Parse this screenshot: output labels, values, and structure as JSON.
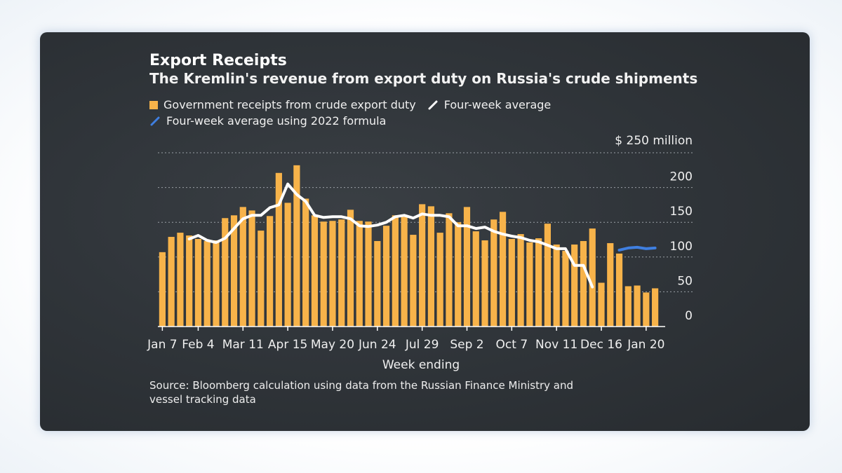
{
  "chart_data": {
    "type": "bar",
    "title": "Export Receipts",
    "subtitle": "The Kremlin's revenue from export duty on Russia's crude shipments",
    "legend": {
      "bars": "Government receipts from crude export duty",
      "line": "Four-week average",
      "line2022": "Four-week average using 2022 formula"
    },
    "unit_label": "$ 250 million",
    "xlabel": "Week ending",
    "ylim": [
      0,
      250
    ],
    "y_ticks": [
      "0",
      "50",
      "100",
      "150",
      "200"
    ],
    "x_ticks": [
      {
        "label": "Jan 7",
        "index": 0
      },
      {
        "label": "Feb 4",
        "index": 4
      },
      {
        "label": "Mar 11",
        "index": 9
      },
      {
        "label": "Apr 15",
        "index": 14
      },
      {
        "label": "May 20",
        "index": 19
      },
      {
        "label": "Jun 24",
        "index": 24
      },
      {
        "label": "Jul 29",
        "index": 29
      },
      {
        "label": "Sep 2",
        "index": 34
      },
      {
        "label": "Oct 7",
        "index": 39
      },
      {
        "label": "Nov 11",
        "index": 44
      },
      {
        "label": "Dec 16",
        "index": 49
      },
      {
        "label": "Jan 20",
        "index": 54
      }
    ],
    "series": [
      {
        "name": "Government receipts from crude export duty",
        "color": "#f7b34a",
        "values": [
          107,
          129,
          135,
          131,
          126,
          123,
          124,
          156,
          160,
          172,
          167,
          138,
          159,
          221,
          178,
          232,
          184,
          160,
          151,
          152,
          154,
          168,
          152,
          151,
          123,
          145,
          160,
          158,
          132,
          176,
          173,
          135,
          163,
          150,
          172,
          137,
          124,
          154,
          165,
          126,
          133,
          121,
          127,
          148,
          118,
          109,
          118,
          123,
          141,
          63,
          120,
          105,
          58,
          59,
          49,
          55
        ]
      },
      {
        "name": "Four-week average",
        "color": "#ffffff",
        "start_index": 3,
        "values": [
          126,
          131,
          124,
          121,
          127,
          141,
          155,
          160,
          160,
          171,
          175,
          205,
          190,
          180,
          160,
          157,
          158,
          158,
          155,
          145,
          144,
          146,
          150,
          158,
          160,
          156,
          162,
          160,
          160,
          158,
          145,
          145,
          141,
          143,
          137,
          133,
          130,
          128,
          124,
          122,
          117,
          112,
          112,
          88,
          88,
          57
        ]
      },
      {
        "name": "Four-week average using 2022 formula",
        "color": "#3f7fe0",
        "start_index": 51,
        "values": [
          110,
          113,
          114,
          112,
          113
        ]
      }
    ]
  },
  "source": "Source: Bloomberg calculation using data from the Russian Finance Ministry and vessel tracking data",
  "colors": {
    "bar": "#f7b34a",
    "avg": "#ffffff",
    "avg2022": "#3f7fe0",
    "text": "#f0f0f0"
  }
}
